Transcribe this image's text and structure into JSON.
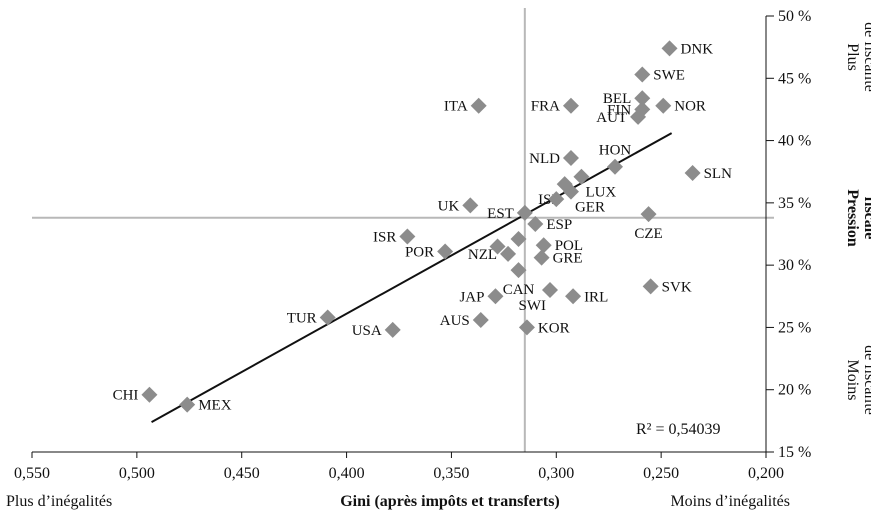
{
  "chart_data": {
    "type": "scatter",
    "x_axis": {
      "label": "Gini (après impôts et transferts)",
      "left_note": "Plus d’inégalités",
      "right_note": "Moins d’inégalités",
      "ticks": [
        0.55,
        0.5,
        0.45,
        0.4,
        0.35,
        0.3,
        0.25,
        0.2
      ],
      "tick_labels": [
        "0,550",
        "0,500",
        "0,450",
        "0,400",
        "0,350",
        "0,300",
        "0,250",
        "0,200"
      ],
      "range": [
        0.55,
        0.2
      ],
      "reversed": true
    },
    "y_axis": {
      "label_line1": "Pression",
      "label_line2": "fiscale",
      "top_note_line1": "Plus",
      "top_note_line2": "de fiscalité",
      "bottom_note_line1": "Moins",
      "bottom_note_line2": "de fiscalité",
      "ticks": [
        15,
        20,
        25,
        30,
        35,
        40,
        45,
        50
      ],
      "tick_labels": [
        "15 %",
        "20 %",
        "25 %",
        "30 %",
        "35 %",
        "40 %",
        "45 %",
        "50 %"
      ],
      "range": [
        15,
        50
      ],
      "position": "right"
    },
    "reference_lines": {
      "x": 0.315,
      "y": 33.8
    },
    "trendline": {
      "x": [
        0.493,
        0.245
      ],
      "y": [
        17.4,
        40.6
      ]
    },
    "r_squared_label": "R² = 0,54039",
    "points": [
      {
        "label": "DNK",
        "x": 0.246,
        "y": 47.4,
        "label_side": "right"
      },
      {
        "label": "SWE",
        "x": 0.259,
        "y": 45.3,
        "label_side": "right"
      },
      {
        "label": "BEL",
        "x": 0.259,
        "y": 43.4,
        "label_side": "left"
      },
      {
        "label": "ITA",
        "x": 0.337,
        "y": 42.8,
        "label_side": "left"
      },
      {
        "label": "FRA",
        "x": 0.293,
        "y": 42.8,
        "label_side": "left"
      },
      {
        "label": "FIN",
        "x": 0.259,
        "y": 42.5,
        "label_side": "left"
      },
      {
        "label": "NOR",
        "x": 0.249,
        "y": 42.8,
        "label_side": "right"
      },
      {
        "label": "AUT",
        "x": 0.261,
        "y": 41.9,
        "label_side": "left"
      },
      {
        "label": "HON",
        "x": 0.272,
        "y": 37.9,
        "label_side": "above"
      },
      {
        "label": "NLD",
        "x": 0.293,
        "y": 38.6,
        "label_side": "left"
      },
      {
        "label": "SLN",
        "x": 0.235,
        "y": 37.4,
        "label_side": "right"
      },
      {
        "label": "LUX",
        "x": 0.288,
        "y": 37.1,
        "label_side": "below-right"
      },
      {
        "label": "ISL",
        "x": 0.296,
        "y": 36.5,
        "label_side": "below-left"
      },
      {
        "label": "GER",
        "x": 0.293,
        "y": 35.9,
        "label_side": "below-right"
      },
      {
        "label": "",
        "x": 0.3,
        "y": 35.3,
        "label_side": "none"
      },
      {
        "label": "UK",
        "x": 0.341,
        "y": 34.8,
        "label_side": "left"
      },
      {
        "label": "EST",
        "x": 0.315,
        "y": 34.2,
        "label_side": "left"
      },
      {
        "label": "ESP",
        "x": 0.31,
        "y": 33.3,
        "label_side": "right"
      },
      {
        "label": "CZE",
        "x": 0.256,
        "y": 34.1,
        "label_side": "below"
      },
      {
        "label": "ISR",
        "x": 0.371,
        "y": 32.3,
        "label_side": "left"
      },
      {
        "label": "POL",
        "x": 0.306,
        "y": 31.6,
        "label_side": "right"
      },
      {
        "label": "",
        "x": 0.318,
        "y": 32.1,
        "label_side": "none"
      },
      {
        "label": "POR",
        "x": 0.353,
        "y": 31.1,
        "label_side": "left"
      },
      {
        "label": "",
        "x": 0.328,
        "y": 31.5,
        "label_side": "none"
      },
      {
        "label": "NZL",
        "x": 0.323,
        "y": 30.9,
        "label_side": "left"
      },
      {
        "label": "GRE",
        "x": 0.307,
        "y": 30.6,
        "label_side": "right"
      },
      {
        "label": "CAN",
        "x": 0.318,
        "y": 29.6,
        "label_side": "below"
      },
      {
        "label": "SVK",
        "x": 0.255,
        "y": 28.3,
        "label_side": "right"
      },
      {
        "label": "JAP",
        "x": 0.329,
        "y": 27.5,
        "label_side": "left"
      },
      {
        "label": "SWI",
        "x": 0.303,
        "y": 28.0,
        "label_side": "below-left"
      },
      {
        "label": "IRL",
        "x": 0.292,
        "y": 27.5,
        "label_side": "right"
      },
      {
        "label": "TUR",
        "x": 0.409,
        "y": 25.8,
        "label_side": "left"
      },
      {
        "label": "AUS",
        "x": 0.336,
        "y": 25.6,
        "label_side": "left"
      },
      {
        "label": "KOR",
        "x": 0.314,
        "y": 25.0,
        "label_side": "right"
      },
      {
        "label": "USA",
        "x": 0.378,
        "y": 24.8,
        "label_side": "left"
      },
      {
        "label": "CHI",
        "x": 0.494,
        "y": 19.6,
        "label_side": "left"
      },
      {
        "label": "MEX",
        "x": 0.476,
        "y": 18.8,
        "label_side": "right"
      }
    ],
    "colors": {
      "marker": "#8c8c8c",
      "reference_line": "#b8b8b8",
      "trendline": "#111111"
    }
  }
}
